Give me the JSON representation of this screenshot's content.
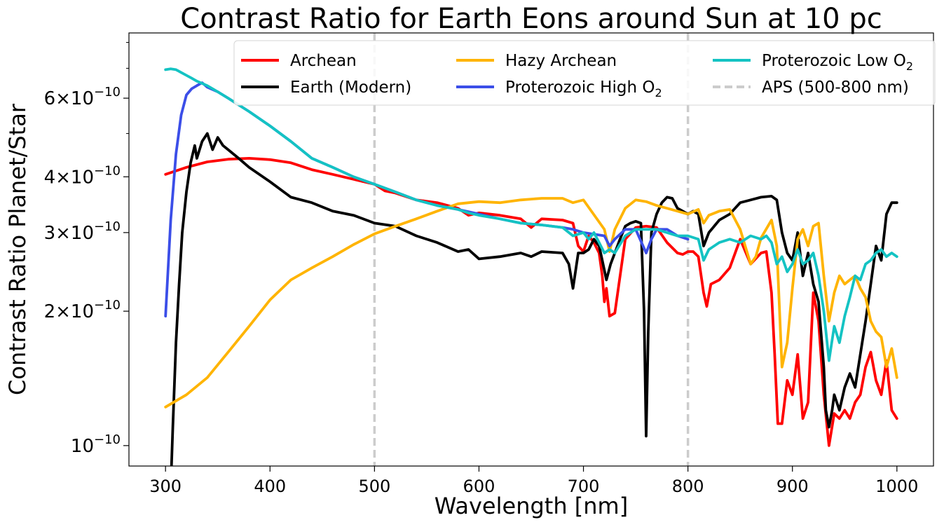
{
  "chart_data": {
    "type": "line",
    "title": "Contrast Ratio for Earth Eons around Sun at 10 pc",
    "xlabel": "Wavelength [nm]",
    "ylabel": "Contrast Ratio Planet/Star",
    "xlim": [
      265,
      1035
    ],
    "ylim": [
      9e-11,
      8.4e-10
    ],
    "yscale": "log",
    "grid": false,
    "legend_placement": "top-right",
    "x_ticks": [
      300,
      400,
      500,
      600,
      700,
      800,
      900,
      1000
    ],
    "x_tick_labels": [
      "300",
      "400",
      "500",
      "600",
      "700",
      "800",
      "900",
      "1000"
    ],
    "y_ticks": [
      {
        "value": 1e-10,
        "mantissa": "",
        "base": "10",
        "exp": "−10"
      },
      {
        "value": 2e-10,
        "mantissa": "2",
        "base": "10",
        "exp": "−10"
      },
      {
        "value": 3e-10,
        "mantissa": "3",
        "base": "10",
        "exp": "−10"
      },
      {
        "value": 4e-10,
        "mantissa": "4",
        "base": "10",
        "exp": "−10"
      },
      {
        "value": 6e-10,
        "mantissa": "6",
        "base": "10",
        "exp": "−10"
      }
    ],
    "y_minor_ticks": [
      5e-10,
      7e-10,
      8e-10
    ],
    "legend": [
      {
        "name": "Archean",
        "sub": "",
        "color": "#ff0000",
        "dashed": false
      },
      {
        "name": "Earth (Modern)",
        "sub": "",
        "color": "#000000",
        "dashed": false
      },
      {
        "name": "Hazy Archean",
        "sub": "",
        "color": "#ffb400",
        "dashed": false
      },
      {
        "name": "Proterozoic High O",
        "sub": "2",
        "color": "#3b4ee8",
        "dashed": false
      },
      {
        "name": "Proterozoic Low O",
        "sub": "2",
        "color": "#14c3c3",
        "dashed": false
      },
      {
        "name": "APS (500-800 nm)",
        "sub": "",
        "color": "#cccccc",
        "dashed": true
      }
    ],
    "vlines": [
      {
        "x": 500,
        "color": "#cccccc"
      },
      {
        "x": 800,
        "color": "#cccccc"
      }
    ],
    "series": [
      {
        "name": "Archean",
        "color": "#ff0000",
        "x": [
          300,
          320,
          340,
          360,
          380,
          400,
          420,
          440,
          460,
          480,
          500,
          510,
          520,
          540,
          560,
          580,
          590,
          600,
          620,
          640,
          650,
          660,
          680,
          690,
          695,
          700,
          705,
          710,
          715,
          718,
          720,
          722,
          725,
          730,
          740,
          750,
          760,
          770,
          780,
          790,
          795,
          800,
          805,
          810,
          815,
          818,
          822,
          830,
          840,
          850,
          860,
          870,
          875,
          880,
          883,
          886,
          890,
          895,
          900,
          905,
          910,
          915,
          920,
          925,
          930,
          935,
          940,
          945,
          950,
          955,
          960,
          965,
          970,
          975,
          980,
          985,
          990,
          995,
          1000
        ],
        "y": [
          4.05e-10,
          4.2e-10,
          4.32e-10,
          4.38e-10,
          4.4e-10,
          4.37e-10,
          4.3e-10,
          4.15e-10,
          4.05e-10,
          3.95e-10,
          3.85e-10,
          3.72e-10,
          3.68e-10,
          3.55e-10,
          3.5e-10,
          3.4e-10,
          3.28e-10,
          3.32e-10,
          3.28e-10,
          3.22e-10,
          3.08e-10,
          3.22e-10,
          3.2e-10,
          3.15e-10,
          2.8e-10,
          2.72e-10,
          2.95e-10,
          2.85e-10,
          2.7e-10,
          2.4e-10,
          2.1e-10,
          2.25e-10,
          1.95e-10,
          1.98e-10,
          2.9e-10,
          3.08e-10,
          3.1e-10,
          3.08e-10,
          2.85e-10,
          2.7e-10,
          2.68e-10,
          2.72e-10,
          2.72e-10,
          2.65e-10,
          2.2e-10,
          2.05e-10,
          2.3e-10,
          2.35e-10,
          2.5e-10,
          2.9e-10,
          2.55e-10,
          2.7e-10,
          2.72e-10,
          2.2e-10,
          1.6e-10,
          1.12e-10,
          1.12e-10,
          1.4e-10,
          1.3e-10,
          1.6e-10,
          1.15e-10,
          1.25e-10,
          2.2e-10,
          1.9e-10,
          1.3e-10,
          1e-10,
          1.18e-10,
          1.15e-10,
          1.2e-10,
          1.15e-10,
          1.25e-10,
          1.3e-10,
          1.5e-10,
          1.62e-10,
          1.4e-10,
          1.3e-10,
          1.55e-10,
          1.2e-10,
          1.15e-10
        ]
      },
      {
        "name": "Earth (Modern)",
        "color": "#000000",
        "x": [
          305,
          307,
          310,
          313,
          316,
          320,
          324,
          328,
          330,
          335,
          340,
          345,
          350,
          355,
          360,
          370,
          380,
          400,
          420,
          440,
          460,
          480,
          500,
          520,
          540,
          560,
          580,
          590,
          600,
          620,
          640,
          650,
          660,
          680,
          686,
          690,
          695,
          700,
          705,
          710,
          715,
          718,
          722,
          726,
          730,
          735,
          740,
          745,
          750,
          755,
          758,
          760,
          762,
          765,
          770,
          775,
          780,
          785,
          790,
          795,
          800,
          805,
          810,
          815,
          820,
          830,
          840,
          850,
          860,
          870,
          880,
          885,
          890,
          895,
          900,
          905,
          910,
          915,
          920,
          925,
          930,
          932,
          935,
          938,
          940,
          945,
          950,
          955,
          960,
          965,
          970,
          975,
          980,
          985,
          990,
          995,
          1000
        ],
        "y": [
          8e-11,
          1.1e-10,
          1.7e-10,
          2.3e-10,
          3e-10,
          3.7e-10,
          4.3e-10,
          4.7e-10,
          4.4e-10,
          4.8e-10,
          5e-10,
          4.6e-10,
          4.9e-10,
          4.7e-10,
          4.6e-10,
          4.4e-10,
          4.2e-10,
          3.9e-10,
          3.6e-10,
          3.5e-10,
          3.35e-10,
          3.28e-10,
          3.15e-10,
          3.1e-10,
          2.95e-10,
          2.85e-10,
          2.72e-10,
          2.75e-10,
          2.62e-10,
          2.65e-10,
          2.7e-10,
          2.65e-10,
          2.72e-10,
          2.7e-10,
          2.55e-10,
          2.25e-10,
          2.7e-10,
          2.7e-10,
          2.75e-10,
          2.9e-10,
          2.8e-10,
          2.6e-10,
          2.35e-10,
          2.55e-10,
          2.7e-10,
          2.9e-10,
          3.1e-10,
          3.15e-10,
          3.18e-10,
          3.15e-10,
          2e-10,
          1.05e-10,
          1.8e-10,
          3e-10,
          3.3e-10,
          3.5e-10,
          3.6e-10,
          3.58e-10,
          3.4e-10,
          3.35e-10,
          3.3e-10,
          3.35e-10,
          3.3e-10,
          2.8e-10,
          3e-10,
          3.2e-10,
          3.3e-10,
          3.5e-10,
          3.55e-10,
          3.6e-10,
          3.62e-10,
          3.55e-10,
          3e-10,
          2.7e-10,
          2.6e-10,
          3e-10,
          2.4e-10,
          2.7e-10,
          2.3e-10,
          2.1e-10,
          1.5e-10,
          1.2e-10,
          1.1e-10,
          1.2e-10,
          1.3e-10,
          1.2e-10,
          1.35e-10,
          1.45e-10,
          1.35e-10,
          1.6e-10,
          1.9e-10,
          2.3e-10,
          2.8e-10,
          2.6e-10,
          3.3e-10,
          3.5e-10,
          3.5e-10
        ]
      },
      {
        "name": "Hazy Archean",
        "color": "#ffb400",
        "x": [
          300,
          320,
          340,
          360,
          380,
          400,
          420,
          440,
          460,
          480,
          500,
          520,
          540,
          560,
          580,
          600,
          620,
          640,
          660,
          680,
          690,
          700,
          720,
          725,
          730,
          740,
          750,
          760,
          770,
          780,
          790,
          800,
          810,
          815,
          820,
          830,
          840,
          850,
          860,
          865,
          870,
          880,
          885,
          890,
          895,
          900,
          905,
          910,
          915,
          920,
          925,
          930,
          935,
          940,
          945,
          950,
          955,
          960,
          965,
          970,
          975,
          980,
          985,
          990,
          995,
          1000
        ],
        "y": [
          1.22e-10,
          1.3e-10,
          1.42e-10,
          1.62e-10,
          1.85e-10,
          2.12e-10,
          2.35e-10,
          2.5e-10,
          2.65e-10,
          2.82e-10,
          2.98e-10,
          3.1e-10,
          3.22e-10,
          3.35e-10,
          3.48e-10,
          3.52e-10,
          3.5e-10,
          3.55e-10,
          3.58e-10,
          3.58e-10,
          3.5e-10,
          3.55e-10,
          3.05e-10,
          2.72e-10,
          3.05e-10,
          3.4e-10,
          3.55e-10,
          3.52e-10,
          3.45e-10,
          3.4e-10,
          3.35e-10,
          3.3e-10,
          3.38e-10,
          3.15e-10,
          3.28e-10,
          3.35e-10,
          3.38e-10,
          3.05e-10,
          2.55e-10,
          2.65e-10,
          2.92e-10,
          3.2e-10,
          2.8e-10,
          1.5e-10,
          1.7e-10,
          2.25e-10,
          2.9e-10,
          3.05e-10,
          2.8e-10,
          3.1e-10,
          3.15e-10,
          2.4e-10,
          1.9e-10,
          2.2e-10,
          2.4e-10,
          2.3e-10,
          2.35e-10,
          2.4e-10,
          2.25e-10,
          2.15e-10,
          1.9e-10,
          1.8e-10,
          1.75e-10,
          1.5e-10,
          1.65e-10,
          1.42e-10
        ]
      },
      {
        "name": "Proterozoic High O2",
        "color": "#3b4ee8",
        "x": [
          300,
          305,
          310,
          315,
          320,
          325,
          330,
          335,
          340,
          350,
          360,
          380,
          400,
          420,
          440,
          460,
          480,
          500,
          520,
          540,
          560,
          580,
          600,
          620,
          640,
          660,
          680,
          690,
          700,
          720,
          725,
          730,
          740,
          750,
          760,
          765,
          770,
          780,
          790,
          800
        ],
        "y": [
          1.95e-10,
          3.2e-10,
          4.5e-10,
          5.5e-10,
          6.1e-10,
          6.3e-10,
          6.4e-10,
          6.5e-10,
          6.35e-10,
          6.2e-10,
          6e-10,
          5.6e-10,
          5.2e-10,
          4.8e-10,
          4.4e-10,
          4.2e-10,
          4e-10,
          3.85e-10,
          3.7e-10,
          3.55e-10,
          3.45e-10,
          3.38e-10,
          3.3e-10,
          3.22e-10,
          3.15e-10,
          3.12e-10,
          3.08e-10,
          3.05e-10,
          3e-10,
          2.95e-10,
          2.8e-10,
          2.9e-10,
          3.05e-10,
          3.05e-10,
          2.7e-10,
          2.9e-10,
          3.05e-10,
          3.05e-10,
          2.95e-10,
          2.9e-10
        ]
      },
      {
        "name": "Proterozoic Low O2",
        "color": "#14c3c3",
        "x": [
          300,
          305,
          310,
          315,
          320,
          325,
          330,
          340,
          350,
          360,
          380,
          400,
          420,
          440,
          460,
          480,
          500,
          520,
          540,
          560,
          580,
          590,
          600,
          620,
          640,
          660,
          680,
          690,
          700,
          705,
          710,
          715,
          720,
          725,
          730,
          740,
          750,
          760,
          770,
          780,
          790,
          800,
          810,
          815,
          820,
          830,
          840,
          850,
          860,
          870,
          875,
          880,
          885,
          890,
          895,
          900,
          905,
          910,
          915,
          920,
          925,
          930,
          935,
          940,
          945,
          950,
          955,
          960,
          965,
          970,
          975,
          980,
          985,
          990,
          995,
          1000
        ],
        "y": [
          6.95e-10,
          6.98e-10,
          6.95e-10,
          6.85e-10,
          6.75e-10,
          6.65e-10,
          6.55e-10,
          6.4e-10,
          6.2e-10,
          6e-10,
          5.6e-10,
          5.2e-10,
          4.8e-10,
          4.4e-10,
          4.2e-10,
          4e-10,
          3.85e-10,
          3.7e-10,
          3.55e-10,
          3.45e-10,
          3.38e-10,
          3.32e-10,
          3.28e-10,
          3.22e-10,
          3.15e-10,
          3.12e-10,
          3.08e-10,
          2.95e-10,
          3e-10,
          2.9e-10,
          3e-10,
          2.85e-10,
          2.7e-10,
          2.75e-10,
          2.7e-10,
          2.95e-10,
          3.05e-10,
          3.05e-10,
          3.05e-10,
          3e-10,
          2.95e-10,
          2.95e-10,
          2.9e-10,
          2.6e-10,
          2.75e-10,
          2.85e-10,
          2.9e-10,
          2.85e-10,
          2.95e-10,
          2.9e-10,
          2.95e-10,
          2.85e-10,
          2.55e-10,
          2.65e-10,
          2.45e-10,
          2.55e-10,
          2.75e-10,
          2.55e-10,
          2.6e-10,
          2.7e-10,
          2.4e-10,
          2e-10,
          1.55e-10,
          1.85e-10,
          1.7e-10,
          1.95e-10,
          2.15e-10,
          2.4e-10,
          2.35e-10,
          2.55e-10,
          2.6e-10,
          2.7e-10,
          2.75e-10,
          2.65e-10,
          2.7e-10,
          2.65e-10
        ]
      }
    ]
  }
}
